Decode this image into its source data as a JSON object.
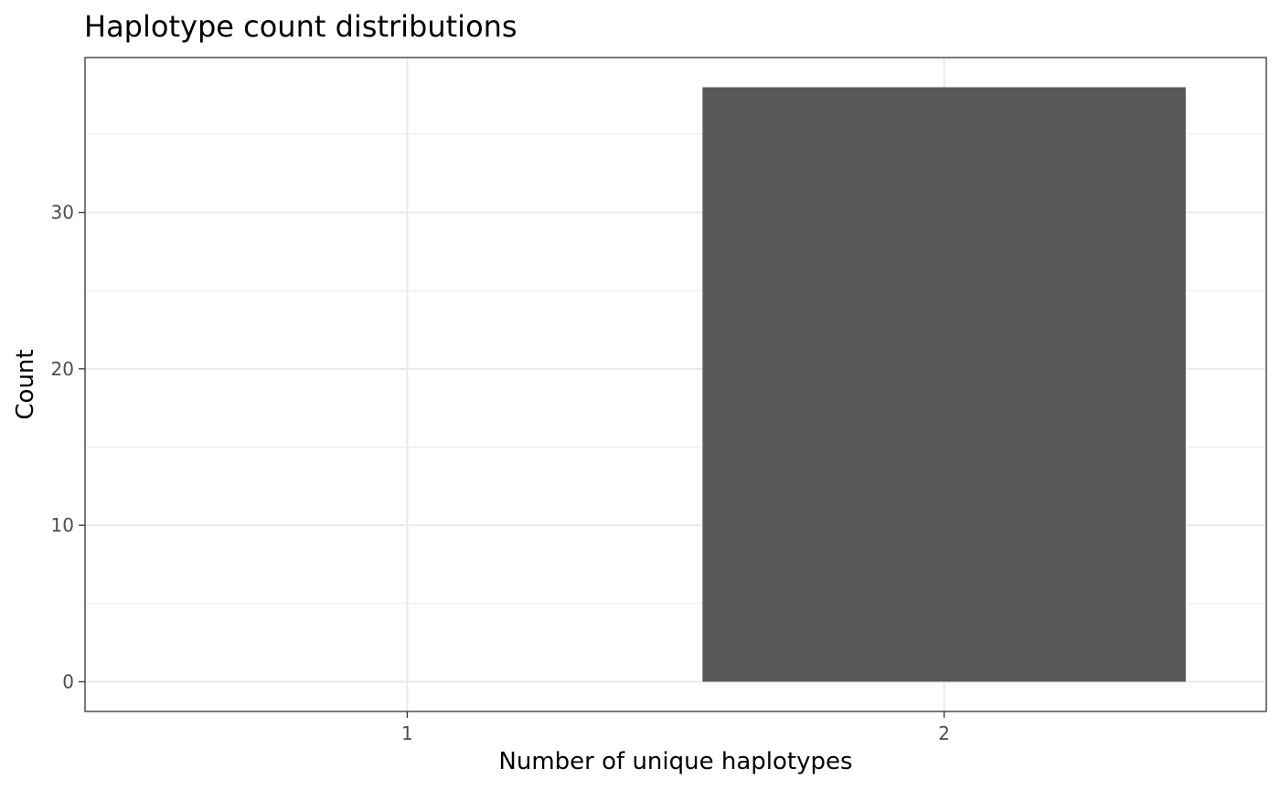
{
  "chart_data": {
    "type": "bar",
    "title": "Haplotype count distributions",
    "xlabel": "Number of unique haplotypes",
    "ylabel": "Count",
    "categories": [
      "1",
      "2"
    ],
    "x_ticks": [
      "1",
      "2"
    ],
    "y_ticks": [
      0,
      10,
      20,
      30
    ],
    "xlim": [
      0.4,
      2.6
    ],
    "ylim": [
      -1.9,
      39.9
    ],
    "bars": [
      {
        "x_start": 1.55,
        "x_end": 2.45,
        "value": 38
      }
    ],
    "grid": true,
    "legend": "none",
    "colors": {
      "bar": "#595959",
      "grid": "#ebebeb",
      "panel_border": "#333333",
      "tick_label": "#4d4d4d"
    }
  }
}
